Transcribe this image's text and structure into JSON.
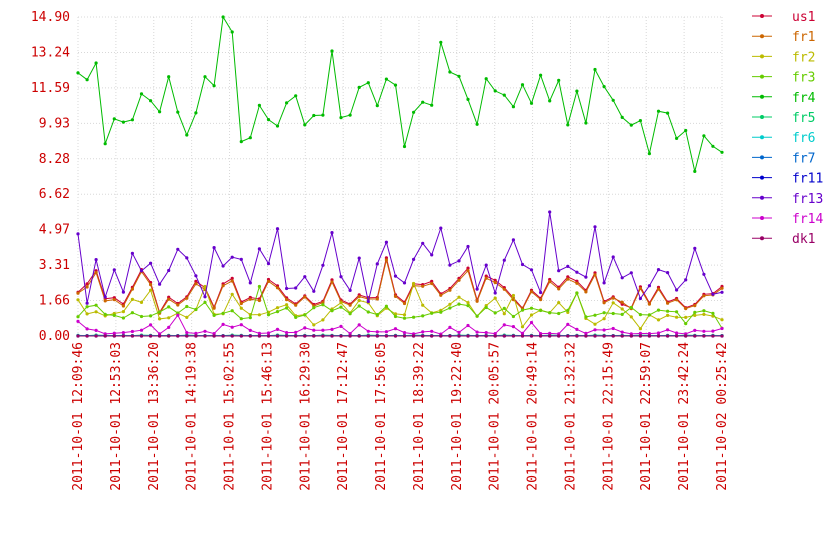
{
  "chart_data": {
    "type": "line",
    "title": "",
    "xlabel": "",
    "ylabel": "",
    "ylim": [
      0,
      14.9
    ],
    "y_ticks": [
      "0.00",
      "1.66",
      "3.31",
      "4.97",
      "6.62",
      "8.28",
      "9.93",
      "11.59",
      "13.24",
      "14.90"
    ],
    "x_ticks": [
      "2011-10-01 12:09:46",
      "2011-10-01 12:53:03",
      "2011-10-01 13:36:20",
      "2011-10-01 14:19:38",
      "2011-10-01 15:02:55",
      "2011-10-01 15:46:13",
      "2011-10-01 16:29:30",
      "2011-10-01 17:12:47",
      "2011-10-01 17:56:05",
      "2011-10-01 18:39:22",
      "2011-10-01 19:22:40",
      "2011-10-01 20:05:57",
      "2011-10-01 20:49:14",
      "2011-10-01 21:32:32",
      "2011-10-01 22:15:49",
      "2011-10-01 22:59:07",
      "2011-10-01 23:42:24",
      "2011-10-02 00:25:42"
    ],
    "grid": true,
    "legend": "right",
    "series": [
      {
        "name": "us1",
        "color": "#cc0033",
        "values": [
          2.04,
          2.44,
          3.05,
          1.74,
          1.79,
          1.49,
          2.27,
          3.1,
          2.5,
          1.1,
          1.81,
          1.52,
          1.83,
          2.55,
          2.26,
          1.35,
          2.44,
          2.69,
          1.59,
          1.8,
          1.73,
          2.64,
          2.34,
          1.78,
          1.5,
          1.88,
          1.47,
          1.62,
          2.62,
          1.68,
          1.49,
          1.92,
          1.79,
          1.8,
          3.65,
          1.92,
          1.58,
          2.44,
          2.4,
          2.55,
          1.97,
          2.22,
          2.69,
          3.17,
          1.68,
          2.8,
          2.6,
          2.26,
          1.77,
          1.3,
          2.14,
          1.76,
          2.64,
          2.28,
          2.76,
          2.56,
          2.13,
          2.95,
          1.61,
          1.83,
          1.48,
          1.32,
          2.3,
          1.54,
          2.27,
          1.59,
          1.75,
          1.32,
          1.47,
          1.95,
          1.98,
          2.31
        ]
      },
      {
        "name": "fr1",
        "color": "#cc6600",
        "values": [
          2.0,
          2.29,
          2.96,
          1.64,
          1.7,
          1.4,
          2.19,
          3.01,
          2.4,
          1.06,
          1.72,
          1.45,
          1.76,
          2.44,
          2.17,
          1.3,
          2.35,
          2.57,
          1.52,
          1.72,
          1.66,
          2.55,
          2.25,
          1.7,
          1.44,
          1.82,
          1.4,
          1.56,
          2.52,
          1.61,
          1.44,
          1.84,
          1.73,
          1.73,
          3.55,
          1.85,
          1.52,
          2.35,
          2.32,
          2.45,
          1.9,
          2.14,
          2.6,
          3.05,
          1.62,
          2.7,
          2.5,
          2.18,
          1.7,
          1.26,
          2.07,
          1.7,
          2.54,
          2.2,
          2.66,
          2.46,
          2.06,
          2.86,
          1.55,
          1.77,
          1.58,
          1.28,
          2.22,
          1.49,
          2.19,
          1.53,
          1.69,
          1.28,
          1.42,
          1.88,
          1.92,
          2.23
        ]
      },
      {
        "name": "fr2",
        "color": "#bbbb00",
        "values": [
          1.69,
          1.03,
          1.13,
          0.94,
          1.05,
          1.14,
          1.71,
          1.57,
          2.14,
          0.8,
          0.85,
          1.07,
          0.87,
          1.24,
          2.31,
          1.01,
          1.04,
          1.95,
          1.3,
          1.0,
          0.99,
          1.11,
          1.32,
          1.46,
          0.95,
          1.0,
          0.52,
          0.75,
          1.26,
          1.55,
          1.08,
          1.66,
          1.55,
          0.95,
          1.3,
          1.03,
          0.99,
          2.45,
          1.44,
          1.08,
          1.2,
          1.48,
          1.81,
          1.56,
          0.92,
          1.42,
          1.77,
          1.04,
          1.89,
          0.43,
          0.98,
          1.21,
          1.09,
          1.56,
          1.1,
          2.01,
          0.82,
          0.55,
          0.81,
          1.55,
          1.26,
          0.89,
          0.34,
          0.99,
          0.75,
          0.96,
          0.88,
          0.87,
          0.96,
          1.01,
          0.93,
          0.76
        ]
      },
      {
        "name": "fr3",
        "color": "#66cc00",
        "values": [
          0.9,
          1.37,
          1.44,
          1.01,
          0.96,
          0.84,
          1.09,
          0.91,
          0.94,
          1.12,
          1.36,
          1.07,
          1.38,
          1.24,
          1.57,
          0.96,
          1.06,
          1.18,
          0.81,
          0.86,
          2.31,
          0.99,
          1.14,
          1.31,
          0.87,
          0.98,
          1.32,
          1.46,
          1.18,
          1.35,
          1.04,
          1.4,
          1.12,
          1.0,
          1.39,
          0.91,
          0.83,
          0.88,
          0.94,
          1.06,
          1.11,
          1.31,
          1.49,
          1.42,
          0.93,
          1.33,
          1.08,
          1.29,
          0.91,
          1.21,
          1.3,
          1.19,
          1.09,
          1.05,
          1.2,
          2.01,
          0.89,
          0.97,
          1.09,
          1.05,
          1.01,
          1.33,
          1.0,
          0.98,
          1.21,
          1.16,
          1.13,
          0.58,
          1.1,
          1.18,
          1.06,
          0.36
        ]
      },
      {
        "name": "fr4",
        "color": "#00bb00",
        "values": [
          12.29,
          11.97,
          12.75,
          8.98,
          10.14,
          9.99,
          10.1,
          11.31,
          10.99,
          10.47,
          12.11,
          10.46,
          9.39,
          10.42,
          12.11,
          11.69,
          14.9,
          14.2,
          9.08,
          9.26,
          10.77,
          10.11,
          9.81,
          10.89,
          11.22,
          9.86,
          10.3,
          10.32,
          13.31,
          10.2,
          10.32,
          11.61,
          11.83,
          10.76,
          12.0,
          11.72,
          8.85,
          10.45,
          10.92,
          10.78,
          13.72,
          12.33,
          12.13,
          11.05,
          9.89,
          12.02,
          11.45,
          11.25,
          10.71,
          11.74,
          10.87,
          12.18,
          10.98,
          11.94,
          9.86,
          11.44,
          9.95,
          12.45,
          11.65,
          11.01,
          10.21,
          9.85,
          10.06,
          8.52,
          10.5,
          10.41,
          9.23,
          9.6,
          7.69,
          9.35,
          8.86,
          8.58
        ]
      },
      {
        "name": "fr5",
        "color": "#00cc66",
        "values": [
          0.03,
          0.02,
          0.04,
          0.03,
          0.02,
          0.03,
          0.02,
          0.04,
          0.03,
          0.02,
          0.03,
          0.02,
          0.04,
          0.03,
          0.02,
          0.03,
          0.02,
          0.04,
          0.03,
          0.02,
          0.03,
          0.02,
          0.04,
          0.03,
          0.02,
          0.03,
          0.02,
          0.04,
          0.03,
          0.02,
          0.03,
          0.02,
          0.04,
          0.03,
          0.02,
          0.03,
          0.02,
          0.04,
          0.03,
          0.02,
          0.03,
          0.02,
          0.04,
          0.03,
          0.02,
          0.03,
          0.02,
          0.04,
          0.03,
          0.02,
          0.03,
          0.02,
          0.04,
          0.03,
          0.02,
          0.03,
          0.02,
          0.04,
          0.03,
          0.02,
          0.03,
          0.02,
          0.04,
          0.03,
          0.02,
          0.03,
          0.02,
          0.04,
          0.03,
          0.02,
          0.03,
          0.02
        ]
      },
      {
        "name": "fr6",
        "color": "#00cccc",
        "values": [
          0.02,
          0.02,
          0.02,
          0.02,
          0.02,
          0.02,
          0.02,
          0.02,
          0.02,
          0.02,
          0.02,
          0.02,
          0.02,
          0.02,
          0.02,
          0.02,
          0.02,
          0.02,
          0.02,
          0.02,
          0.02,
          0.02,
          0.02,
          0.02,
          0.02,
          0.02,
          0.02,
          0.02,
          0.02,
          0.02,
          0.02,
          0.02,
          0.02,
          0.02,
          0.02,
          0.02,
          0.02,
          0.02,
          0.02,
          0.02,
          0.02,
          0.02,
          0.02,
          0.02,
          0.02,
          0.02,
          0.02,
          0.02,
          0.02,
          0.02,
          0.02,
          0.02,
          0.02,
          0.02,
          0.02,
          0.02,
          0.02,
          0.02,
          0.02,
          0.02,
          0.02,
          0.02,
          0.02,
          0.02,
          0.02,
          0.02,
          0.02,
          0.02,
          0.02,
          0.02,
          0.02,
          0.02
        ]
      },
      {
        "name": "fr7",
        "color": "#0066cc",
        "values": [
          0.01,
          0.01,
          0.01,
          0.01,
          0.01,
          0.01,
          0.01,
          0.01,
          0.01,
          0.01,
          0.01,
          0.01,
          0.01,
          0.01,
          0.01,
          0.01,
          0.01,
          0.01,
          0.01,
          0.01,
          0.01,
          0.01,
          0.01,
          0.01,
          0.01,
          0.01,
          0.01,
          0.01,
          0.01,
          0.01,
          0.01,
          0.01,
          0.01,
          0.01,
          0.01,
          0.01,
          0.01,
          0.01,
          0.01,
          0.01,
          0.01,
          0.01,
          0.01,
          0.01,
          0.01,
          0.01,
          0.01,
          0.01,
          0.01,
          0.01,
          0.01,
          0.01,
          0.01,
          0.01,
          0.01,
          0.01,
          0.01,
          0.01,
          0.01,
          0.01,
          0.01,
          0.01,
          0.01,
          0.01,
          0.01,
          0.01,
          0.01,
          0.01,
          0.01,
          0.01,
          0.01,
          0.01
        ]
      },
      {
        "name": "fr11",
        "color": "#0000cc",
        "values": [
          0.0,
          0.0,
          0.0,
          0.0,
          0.0,
          0.0,
          0.0,
          0.0,
          0.0,
          0.0,
          0.0,
          0.0,
          0.0,
          0.0,
          0.0,
          0.0,
          0.0,
          0.0,
          0.0,
          0.0,
          0.0,
          0.0,
          0.0,
          0.0,
          0.0,
          0.0,
          0.0,
          0.0,
          0.0,
          0.0,
          0.0,
          0.0,
          0.0,
          0.0,
          0.0,
          0.0,
          0.0,
          0.0,
          0.0,
          0.0,
          0.0,
          0.0,
          0.0,
          0.0,
          0.0,
          0.0,
          0.0,
          0.0,
          0.0,
          0.0,
          0.0,
          0.0,
          0.0,
          0.0,
          0.0,
          0.0,
          0.0,
          0.0,
          0.0,
          0.0,
          0.0,
          0.0,
          0.0,
          0.0,
          0.0,
          0.0,
          0.0,
          0.0,
          0.0,
          0.0,
          0.0,
          0.0
        ]
      },
      {
        "name": "fr13",
        "color": "#6600cc",
        "values": [
          4.77,
          1.53,
          3.57,
          1.82,
          3.09,
          2.05,
          3.86,
          3.04,
          3.4,
          2.42,
          3.06,
          4.05,
          3.65,
          2.81,
          1.83,
          4.13,
          3.27,
          3.68,
          3.58,
          2.48,
          4.07,
          3.38,
          5.01,
          2.22,
          2.24,
          2.77,
          2.09,
          3.3,
          4.83,
          2.77,
          2.13,
          3.64,
          1.61,
          3.37,
          4.38,
          2.8,
          2.48,
          3.58,
          4.33,
          3.79,
          5.04,
          3.31,
          3.51,
          4.18,
          2.19,
          3.31,
          2.01,
          3.54,
          4.49,
          3.34,
          3.09,
          2.03,
          5.79,
          3.05,
          3.25,
          2.98,
          2.75,
          5.1,
          2.48,
          3.69,
          2.72,
          2.95,
          1.75,
          2.35,
          3.1,
          2.96,
          2.15,
          2.62,
          4.09,
          2.88,
          1.95,
          2.04
        ]
      },
      {
        "name": "fr14",
        "color": "#cc00cc",
        "values": [
          0.68,
          0.33,
          0.26,
          0.1,
          0.13,
          0.16,
          0.21,
          0.27,
          0.52,
          0.1,
          0.4,
          0.97,
          0.16,
          0.12,
          0.22,
          0.11,
          0.54,
          0.41,
          0.53,
          0.26,
          0.12,
          0.14,
          0.31,
          0.16,
          0.17,
          0.38,
          0.27,
          0.27,
          0.31,
          0.45,
          0.11,
          0.52,
          0.22,
          0.19,
          0.2,
          0.34,
          0.16,
          0.1,
          0.19,
          0.22,
          0.09,
          0.4,
          0.17,
          0.49,
          0.18,
          0.16,
          0.11,
          0.52,
          0.44,
          0.12,
          0.63,
          0.11,
          0.12,
          0.1,
          0.54,
          0.31,
          0.12,
          0.29,
          0.28,
          0.35,
          0.18,
          0.1,
          0.12,
          0.11,
          0.14,
          0.29,
          0.14,
          0.1,
          0.26,
          0.22,
          0.23,
          0.35
        ]
      },
      {
        "name": "dk1",
        "color": "#990066",
        "values": [
          0.0,
          0.0,
          0.0,
          0.0,
          0.0,
          0.0,
          0.0,
          0.0,
          0.0,
          0.0,
          0.0,
          0.0,
          0.0,
          0.0,
          0.0,
          0.0,
          0.0,
          0.0,
          0.0,
          0.0,
          0.0,
          0.0,
          0.0,
          0.0,
          0.0,
          0.0,
          0.0,
          0.0,
          0.0,
          0.0,
          0.0,
          0.0,
          0.0,
          0.0,
          0.0,
          0.0,
          0.0,
          0.0,
          0.0,
          0.0,
          0.0,
          0.0,
          0.0,
          0.0,
          0.0,
          0.0,
          0.0,
          0.0,
          0.0,
          0.0,
          0.0,
          0.0,
          0.0,
          0.0,
          0.0,
          0.0,
          0.0,
          0.0,
          0.0,
          0.0,
          0.0,
          0.0,
          0.0,
          0.0,
          0.0,
          0.0,
          0.0,
          0.0,
          0.0,
          0.0,
          0.0,
          0.0
        ]
      }
    ]
  }
}
